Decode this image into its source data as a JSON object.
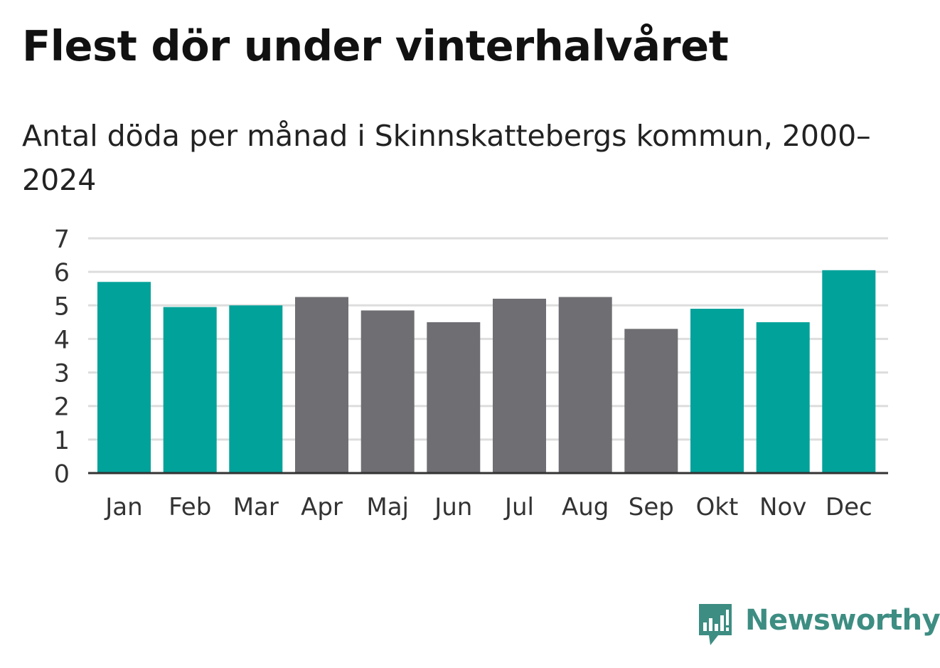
{
  "colors": {
    "winter": "#00a29a",
    "summer": "#6e6e73",
    "grid": "#dddddd",
    "axis": "#333333",
    "text": "#333333",
    "brand": "#3d8d82"
  },
  "chart_data": {
    "type": "bar",
    "title": "Flest dör under vinterhalvåret",
    "subtitle": "Antal döda per månad i Skinnskattebergs kommun, 2000–2024",
    "xlabel": "",
    "ylabel": "",
    "categories": [
      "Jan",
      "Feb",
      "Mar",
      "Apr",
      "Maj",
      "Jun",
      "Jul",
      "Aug",
      "Sep",
      "Okt",
      "Nov",
      "Dec"
    ],
    "values": [
      5.7,
      4.95,
      5.0,
      5.25,
      4.85,
      4.5,
      5.2,
      5.25,
      4.3,
      4.9,
      4.5,
      6.05
    ],
    "season": [
      "winter",
      "winter",
      "winter",
      "summer",
      "summer",
      "summer",
      "summer",
      "summer",
      "summer",
      "winter",
      "winter",
      "winter"
    ],
    "ylim": [
      0,
      7
    ],
    "yticks": [
      "0",
      "1",
      "2",
      "3",
      "4",
      "5",
      "6",
      "7"
    ],
    "grid": true,
    "legend": "none"
  },
  "brand": {
    "name": "Newsworthy",
    "icon": "newsworthy-logo-icon"
  }
}
